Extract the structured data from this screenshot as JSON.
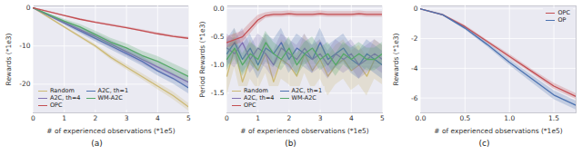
{
  "chart_data": [
    {
      "type": "line",
      "title": "(a)",
      "x_label": "# of experienced observations (*1e5)",
      "y_label": "Rewards (*1e3)",
      "x": [
        0,
        0.5,
        1,
        1.5,
        2,
        2.5,
        3,
        3.5,
        4,
        4.5,
        5
      ],
      "xlim": [
        0,
        5
      ],
      "xticks": [
        0,
        1,
        2,
        3,
        4,
        5
      ],
      "ylim": [
        -27.5,
        0.5
      ],
      "yticks": [
        0,
        -10,
        -20
      ],
      "grid": true,
      "legend": "lower left",
      "series": [
        {
          "name": "Random",
          "color": "#ccb974",
          "values": [
            0,
            -2.5,
            -5,
            -7.5,
            -10,
            -13,
            -15.5,
            -18,
            -20.5,
            -23,
            -26
          ],
          "error": [
            0,
            0.2,
            0.3,
            0.4,
            0.5,
            0.6,
            0.7,
            0.8,
            0.9,
            1.0,
            1.0
          ]
        },
        {
          "name": "A2C, th=1",
          "color": "#4c72b0",
          "values": [
            0,
            -2,
            -4,
            -6,
            -8,
            -10,
            -12,
            -14,
            -16.5,
            -18.5,
            -21
          ],
          "error": [
            0,
            0.3,
            0.5,
            0.7,
            0.9,
            1.0,
            1.1,
            1.2,
            1.3,
            1.4,
            1.5
          ]
        },
        {
          "name": "A2C, th=4",
          "color": "#8172b2",
          "values": [
            0,
            -2,
            -3.8,
            -5.7,
            -7.5,
            -9.5,
            -11.5,
            -13.5,
            -15.5,
            -17.5,
            -19.5
          ],
          "error": [
            0,
            0.3,
            0.5,
            0.7,
            0.9,
            1.0,
            1.1,
            1.2,
            1.3,
            1.4,
            1.5
          ]
        },
        {
          "name": "WM-A2C",
          "color": "#55a868",
          "values": [
            0,
            -1.8,
            -3.5,
            -5,
            -7,
            -9,
            -10.5,
            -12.5,
            -14,
            -16,
            -18
          ],
          "error": [
            0,
            0.3,
            0.5,
            0.7,
            0.9,
            1.0,
            1.1,
            1.2,
            1.3,
            1.4,
            1.5
          ]
        },
        {
          "name": "OPC",
          "color": "#c44e52",
          "values": [
            0,
            -1,
            -2,
            -3,
            -3.8,
            -4.5,
            -5.2,
            -6,
            -6.8,
            -7.5,
            -8
          ],
          "error": [
            0,
            0.1,
            0.15,
            0.2,
            0.2,
            0.25,
            0.25,
            0.3,
            0.3,
            0.3,
            0.3
          ]
        }
      ]
    },
    {
      "type": "line",
      "title": "(b)",
      "x_label": "# of experienced observations (*1e5)",
      "y_label": "Period Rewards (*1e3)",
      "x": [
        0,
        0.25,
        0.5,
        0.75,
        1,
        1.25,
        1.5,
        1.75,
        2,
        2.25,
        2.5,
        2.75,
        3,
        3.25,
        3.5,
        3.75,
        4,
        4.25,
        4.5,
        4.75,
        5
      ],
      "xlim": [
        0,
        5
      ],
      "xticks": [
        0,
        1,
        2,
        3,
        4,
        5
      ],
      "ylim": [
        -1.85,
        0.05
      ],
      "yticks": [
        {
          "value": 0,
          "label": "0.0"
        },
        -0.5,
        {
          "value": -1,
          "label": "-1.0"
        },
        -1.5
      ],
      "grid": true,
      "legend": "lower left",
      "series": [
        {
          "name": "Random",
          "color": "#ccb974",
          "values": [
            -1.2,
            -0.7,
            -1.3,
            -0.9,
            -1.1,
            -0.8,
            -1.3,
            -0.9,
            -1.0,
            -1.2,
            -0.8,
            -1.1,
            -0.9,
            -1.2,
            -1.0,
            -0.9,
            -1.1,
            -1.0,
            -1.2,
            -0.9,
            -1.0
          ],
          "error": [
            0.35,
            0.35,
            0.35,
            0.35,
            0.35,
            0.35,
            0.35,
            0.35,
            0.35,
            0.35,
            0.35,
            0.35,
            0.35,
            0.35,
            0.35,
            0.35,
            0.35,
            0.35,
            0.35,
            0.35,
            0.35
          ]
        },
        {
          "name": "A2C, th=1",
          "color": "#4c72b0",
          "values": [
            -0.8,
            -0.6,
            -0.9,
            -0.7,
            -1.0,
            -0.7,
            -0.8,
            -0.6,
            -0.9,
            -0.7,
            -0.8,
            -0.9,
            -0.6,
            -0.9,
            -0.8,
            -0.7,
            -0.9,
            -1.0,
            -0.8,
            -0.9,
            -1.0
          ],
          "error": [
            0.25,
            0.25,
            0.25,
            0.25,
            0.25,
            0.25,
            0.25,
            0.25,
            0.25,
            0.25,
            0.25,
            0.25,
            0.25,
            0.25,
            0.25,
            0.25,
            0.25,
            0.25,
            0.25,
            0.25,
            0.25
          ]
        },
        {
          "name": "A2C, th=4",
          "color": "#8172b2",
          "values": [
            -0.7,
            -0.8,
            -0.6,
            -0.9,
            -0.7,
            -0.8,
            -1.0,
            -0.7,
            -0.8,
            -0.9,
            -0.7,
            -0.9,
            -0.8,
            -1.0,
            -0.8,
            -0.9,
            -0.8,
            -1.0,
            -0.9,
            -0.8,
            -0.9
          ],
          "error": [
            0.25,
            0.25,
            0.25,
            0.25,
            0.25,
            0.25,
            0.25,
            0.25,
            0.25,
            0.25,
            0.25,
            0.25,
            0.25,
            0.25,
            0.25,
            0.25,
            0.25,
            0.25,
            0.25,
            0.25,
            0.25
          ]
        },
        {
          "name": "WM-A2C",
          "color": "#55a868",
          "values": [
            -0.9,
            -0.7,
            -1.0,
            -0.8,
            -0.9,
            -0.6,
            -0.8,
            -0.9,
            -0.7,
            -1.0,
            -0.8,
            -0.7,
            -0.9,
            -0.8,
            -1.0,
            -0.8,
            -0.9,
            -0.8,
            -0.9,
            -0.9,
            -0.8
          ],
          "error": [
            0.2,
            0.2,
            0.2,
            0.2,
            0.2,
            0.2,
            0.2,
            0.2,
            0.2,
            0.2,
            0.2,
            0.2,
            0.2,
            0.2,
            0.2,
            0.2,
            0.2,
            0.2,
            0.2,
            0.2,
            0.2
          ]
        },
        {
          "name": "OPC",
          "color": "#c44e52",
          "values": [
            -0.6,
            -0.55,
            -0.5,
            -0.35,
            -0.2,
            -0.12,
            -0.1,
            -0.1,
            -0.09,
            -0.1,
            -0.1,
            -0.1,
            -0.09,
            -0.1,
            -0.1,
            -0.1,
            -0.1,
            -0.09,
            -0.1,
            -0.1,
            -0.1
          ],
          "error": [
            0.1,
            0.1,
            0.1,
            0.1,
            0.08,
            0.05,
            0.05,
            0.05,
            0.05,
            0.05,
            0.05,
            0.05,
            0.05,
            0.05,
            0.05,
            0.05,
            0.05,
            0.05,
            0.05,
            0.05,
            0.05
          ]
        }
      ]
    },
    {
      "type": "line",
      "title": "(c)",
      "x_label": "# of experienced observations (*1e5)",
      "y_label": "Rewards (*1e3)",
      "x": [
        0,
        0.25,
        0.5,
        0.75,
        1,
        1.25,
        1.5,
        1.75
      ],
      "xlim": [
        0,
        1.75
      ],
      "xticks": [
        {
          "value": 0,
          "label": "0.0"
        },
        0.5,
        {
          "value": 1,
          "label": "1.0"
        },
        1.5
      ],
      "ylim": [
        -7,
        0.2
      ],
      "yticks": [
        0,
        -2,
        -4,
        -6
      ],
      "grid": true,
      "legend": "upper right",
      "series": [
        {
          "name": "OPC",
          "color": "#c44e52",
          "values": [
            0,
            -0.4,
            -1.2,
            -2.2,
            -3.2,
            -4.2,
            -5.2,
            -5.9
          ],
          "error": [
            0,
            0.05,
            0.1,
            0.1,
            0.15,
            0.15,
            0.2,
            0.2
          ]
        },
        {
          "name": "OP",
          "color": "#4c72b0",
          "values": [
            0,
            -0.4,
            -1.3,
            -2.4,
            -3.6,
            -4.7,
            -5.8,
            -6.5
          ],
          "error": [
            0,
            0.05,
            0.1,
            0.15,
            0.2,
            0.25,
            0.3,
            0.3
          ]
        }
      ]
    }
  ]
}
